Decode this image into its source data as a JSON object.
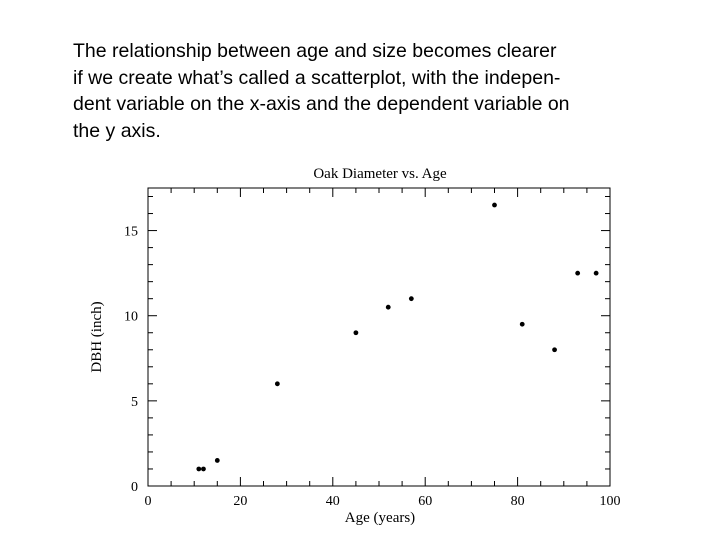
{
  "caption": {
    "lines": [
      "The relationship between age and size becomes clearer",
      "if we create what’s called a scatterplot, with the indepen-",
      "dent variable on the x-axis and the dependent variable on",
      "the y axis."
    ]
  },
  "chart_data": {
    "type": "scatter",
    "title": "Oak Diameter vs. Age",
    "xlabel": "Age (years)",
    "ylabel": "DBH (inch)",
    "xlim": [
      0,
      100
    ],
    "ylim": [
      0,
      17.5
    ],
    "xticks": [
      0,
      20,
      40,
      60,
      80,
      100
    ],
    "yticks": [
      0,
      5,
      10,
      15
    ],
    "grid": false,
    "points": [
      {
        "x": 11,
        "y": 1
      },
      {
        "x": 12,
        "y": 1
      },
      {
        "x": 15,
        "y": 1.5
      },
      {
        "x": 28,
        "y": 6
      },
      {
        "x": 45,
        "y": 9
      },
      {
        "x": 52,
        "y": 10.5
      },
      {
        "x": 57,
        "y": 11
      },
      {
        "x": 75,
        "y": 16.5
      },
      {
        "x": 81,
        "y": 9.5
      },
      {
        "x": 88,
        "y": 8
      },
      {
        "x": 93,
        "y": 12.5
      },
      {
        "x": 97,
        "y": 12.5
      }
    ],
    "colors": {
      "marker": "#000000",
      "axis": "#000000"
    }
  }
}
